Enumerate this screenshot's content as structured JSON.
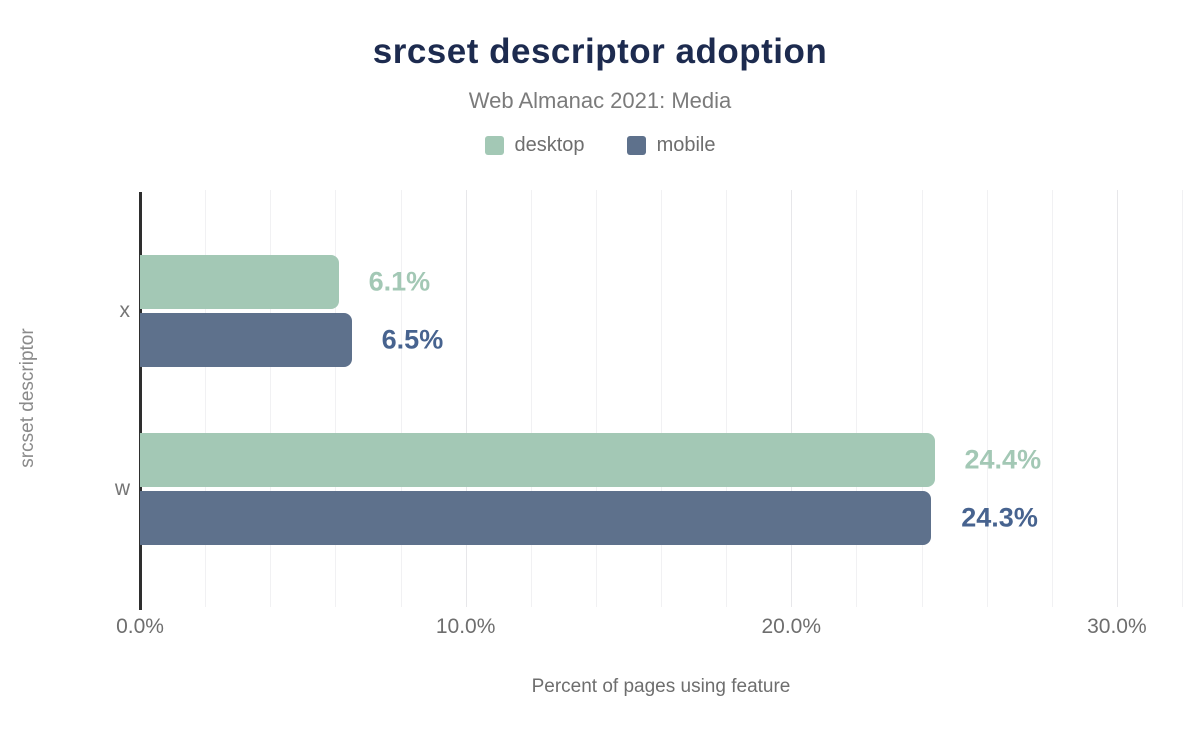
{
  "header": {
    "title": "srcset descriptor adoption",
    "subtitle": "Web Almanac 2021: Media"
  },
  "colors": {
    "title_navy": "#1d2b4f",
    "desktop_green": "#a3c8b5",
    "mobile_slate": "#5e718c",
    "mobile_label": "#47638f",
    "axis_line": "#2e2e2e",
    "muted_text": "#6e6e6e"
  },
  "chart_data": {
    "type": "bar",
    "orientation": "horizontal",
    "title": "srcset descriptor adoption",
    "subtitle": "Web Almanac 2021: Media",
    "categories": [
      "x",
      "w"
    ],
    "series": [
      {
        "name": "desktop",
        "color": "#a3c8b5",
        "label_color": "#a3c8b5",
        "values": [
          6.1,
          24.4
        ],
        "labels": [
          "6.1%",
          "24.4%"
        ]
      },
      {
        "name": "mobile",
        "color": "#5e718c",
        "label_color": "#47638f",
        "values": [
          6.5,
          24.3
        ],
        "labels": [
          "6.5%",
          "24.3%"
        ]
      }
    ],
    "xlabel": "Percent of pages using feature",
    "ylabel": "srcset descriptor",
    "x_ticks": [
      {
        "value": 0,
        "label": "0.0%"
      },
      {
        "value": 10,
        "label": "10.0%"
      },
      {
        "value": 20,
        "label": "20.0%"
      },
      {
        "value": 30,
        "label": "30.0%"
      }
    ],
    "xlim": [
      0,
      32
    ],
    "grid": {
      "minor_step": 2,
      "major_step": 10,
      "on": true
    },
    "legend_position": "top"
  }
}
